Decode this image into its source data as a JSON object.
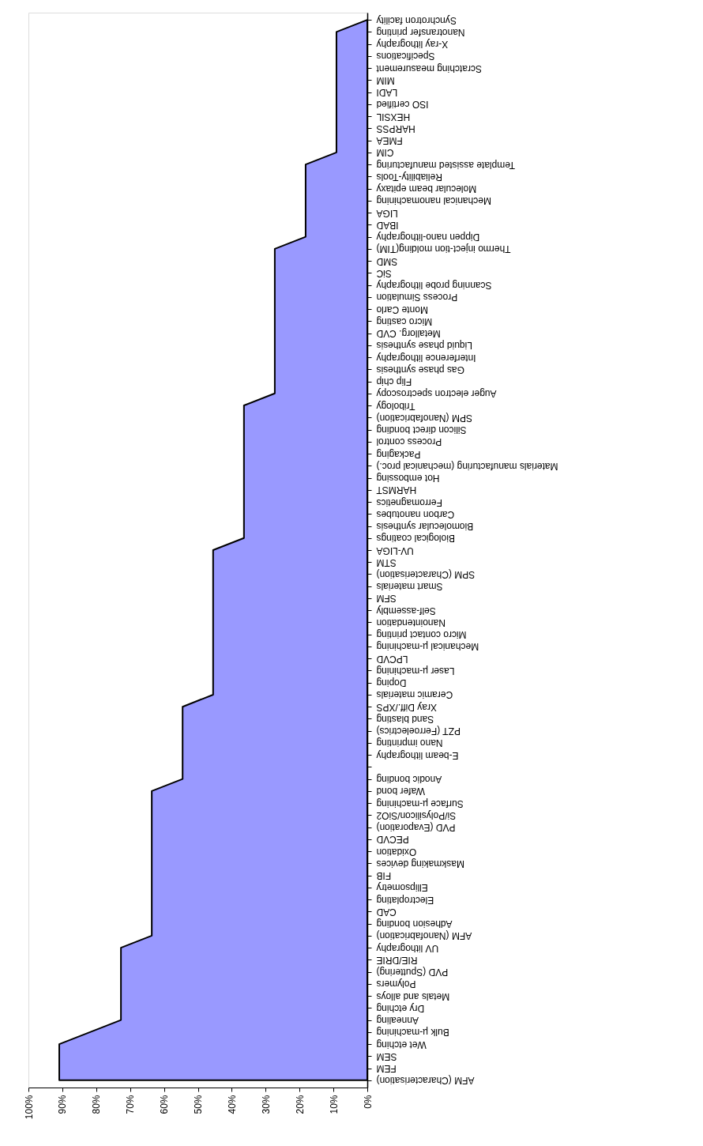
{
  "chart_data": {
    "type": "area",
    "orientation": "horizontal",
    "categories": [
      "Synchrotron facility",
      "Nanotransfer printing",
      "X-ray lithography",
      "Specifications",
      "Scratching measurement",
      "MIM",
      "LADI",
      "ISO certified",
      "HEXSIL",
      "HARPSS",
      "FMEA",
      "CIM",
      "Template assisted manufacturing",
      "Reliability-Tools",
      "Molecular beam epitaxy",
      "Mechanical nanomachining",
      "LIGA",
      "IBAD",
      "Dippen nano-lithography",
      "Thermo inject-tion molding(TIM)",
      "SMD",
      "SiC",
      "Scanning probe lithography",
      "Process Simulation",
      "Monte Carlo",
      "Micro casting",
      "Metallorg. CVD",
      "Liquid phase synthesis",
      "Interference lithography",
      "Gas phase synthesis",
      "Flip chip",
      "Auger electron spectroscopy",
      "Tribology",
      "SPM (Nanofabrication)",
      "Silicon direct bonding",
      "Process control",
      "Packaging",
      "Materials manufacturing (mechanical proc.)",
      "Hot embossing",
      "HARMST",
      "Ferromagnetics",
      "Carbon nanotubes",
      "Biomolecular synthesis",
      "Biological coatings",
      "UV-LIGA",
      "STM",
      "SPM (Characterisation)",
      "Smart materials",
      "SFM",
      "Self-assembly",
      "Nanointendation",
      "Micro contact printing",
      "Mechanical µ-machining",
      "LPCVD",
      "Laser µ-machining",
      "Doping",
      "Ceramic materials",
      "Xray Diff./XPS",
      "Sand blasting",
      "PZT (Ferroelectrics)",
      "Nano imprinting",
      "E-beam lithography",
      null,
      "Anodic bonding",
      "Wafer bond",
      "Surface µ-machining",
      "Si/Polysilicon/SiO2",
      "PVD (Evaporation)",
      "PECVD",
      "Oxidation",
      "Maskmaking devices",
      "FIB",
      "Ellipsometry",
      "Electroplating",
      "CAD",
      "Adhesion bonding",
      "AFM (Nanofabrication)",
      "UV lithography",
      "RIE/DRIE",
      "PVD (Sputtering)",
      "Polymers",
      "Metals and alloys",
      "Dry etching",
      "Annealing",
      "Bulk µ-machining",
      "Wet etching",
      "SEM",
      "FEM",
      "AFM (Characterisation)"
    ],
    "series": [
      {
        "color": "#9999ff",
        "values": [
          0,
          9.1,
          9.1,
          9.1,
          9.1,
          9.1,
          9.1,
          9.1,
          9.1,
          9.1,
          9.1,
          9.1,
          18.2,
          18.2,
          18.2,
          18.2,
          18.2,
          18.2,
          18.2,
          27.3,
          27.3,
          27.3,
          27.3,
          27.3,
          27.3,
          27.3,
          27.3,
          27.3,
          27.3,
          27.3,
          27.3,
          27.3,
          36.4,
          36.4,
          36.4,
          36.4,
          36.4,
          36.4,
          36.4,
          36.4,
          36.4,
          36.4,
          36.4,
          36.4,
          45.5,
          45.5,
          45.5,
          45.5,
          45.5,
          45.5,
          45.5,
          45.5,
          45.5,
          45.5,
          45.5,
          45.5,
          45.5,
          54.5,
          54.5,
          54.5,
          54.5,
          54.5,
          54.5,
          54.5,
          63.6,
          63.6,
          63.6,
          63.6,
          63.6,
          63.6,
          63.6,
          63.6,
          63.6,
          63.6,
          63.6,
          63.6,
          63.6,
          72.7,
          72.7,
          72.7,
          72.7,
          72.7,
          72.7,
          72.7,
          81.8,
          90.9,
          90.9,
          90.9,
          90.9
        ]
      }
    ],
    "xlim": [
      100,
      0
    ],
    "xticks": [
      {
        "value": 100,
        "label": "100%"
      },
      {
        "value": 90,
        "label": "90%"
      },
      {
        "value": 80,
        "label": "80%"
      },
      {
        "value": 70,
        "label": "70%"
      },
      {
        "value": 60,
        "label": "60%"
      },
      {
        "value": 50,
        "label": "50%"
      },
      {
        "value": 40,
        "label": "40%"
      },
      {
        "value": 30,
        "label": "30%"
      },
      {
        "value": 20,
        "label": "20%"
      },
      {
        "value": 10,
        "label": "10%"
      },
      {
        "value": 0,
        "label": "0%"
      }
    ],
    "grid": false
  }
}
